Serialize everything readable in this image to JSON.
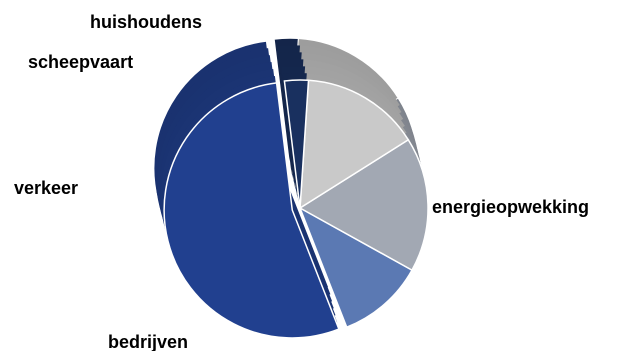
{
  "chart_data": {
    "type": "pie",
    "style": "3d-exploded",
    "categories": [
      "energieopwekking",
      "bedrijven",
      "verkeer",
      "scheepvaart",
      "huishoudens"
    ],
    "values": [
      54,
      11,
      17,
      15,
      3
    ],
    "legend": "none",
    "colors": {
      "energieopwekking": "#21408f",
      "bedrijven": "#5b79b3",
      "verkeer": "#a2a8b3",
      "scheepvaart": "#c9c9c9",
      "huishoudens": "#19305f"
    }
  }
}
